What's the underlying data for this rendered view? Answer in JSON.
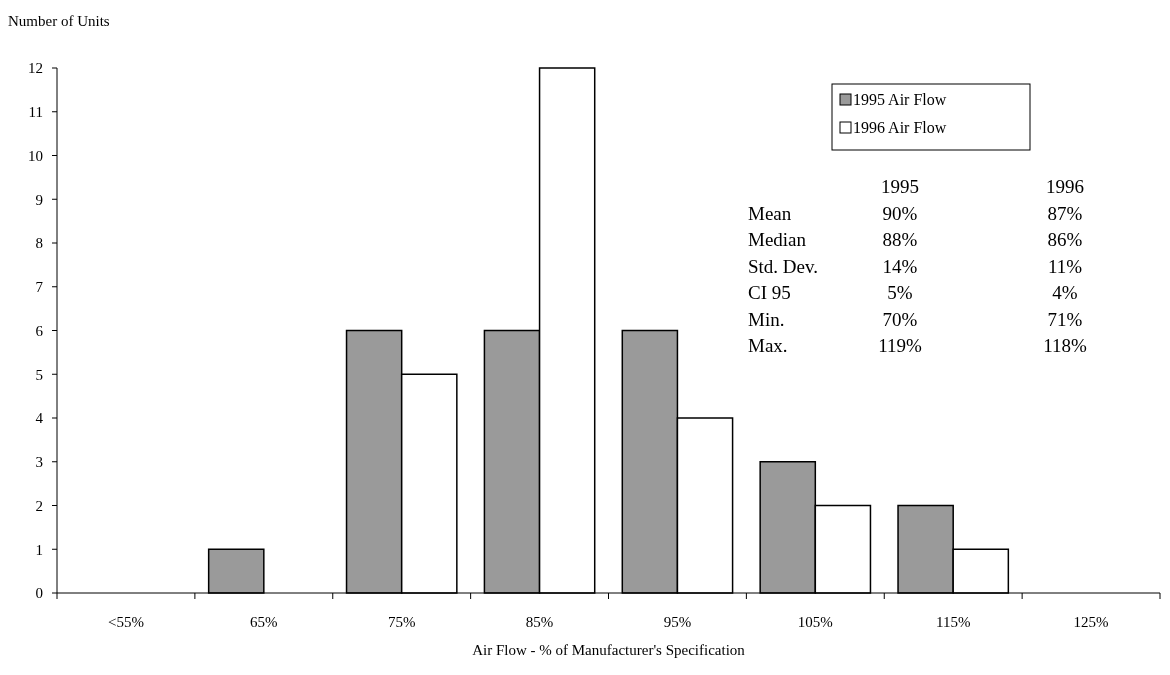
{
  "chart_data": {
    "type": "bar",
    "ylabel": "Number of Units",
    "xlabel": "Air Flow - % of Manufacturer's Specification",
    "categories": [
      "<55%",
      "65%",
      "75%",
      "85%",
      "95%",
      "105%",
      "115%",
      "125%"
    ],
    "series": [
      {
        "name": "1995 Air Flow",
        "color": "#9a9a9a",
        "values": [
          0,
          1,
          6,
          6,
          6,
          3,
          2,
          0
        ]
      },
      {
        "name": "1996 Air Flow",
        "color": "#ffffff",
        "values": [
          0,
          0,
          5,
          12,
          4,
          2,
          1,
          0
        ]
      }
    ],
    "ylim": [
      0,
      12
    ],
    "yticks": [
      0,
      1,
      2,
      3,
      4,
      5,
      6,
      7,
      8,
      9,
      10,
      11,
      12
    ],
    "grid": false,
    "legend": "top right",
    "annotations": [
      "1995",
      "1996",
      "Mean",
      "90%",
      "87%",
      "Median",
      "88%",
      "86%",
      "Std. Dev.",
      "14%",
      "11%",
      "CI 95",
      "5%",
      "4%",
      "Min.",
      "70%",
      "71%",
      "Max.",
      "119%",
      "118%"
    ]
  }
}
